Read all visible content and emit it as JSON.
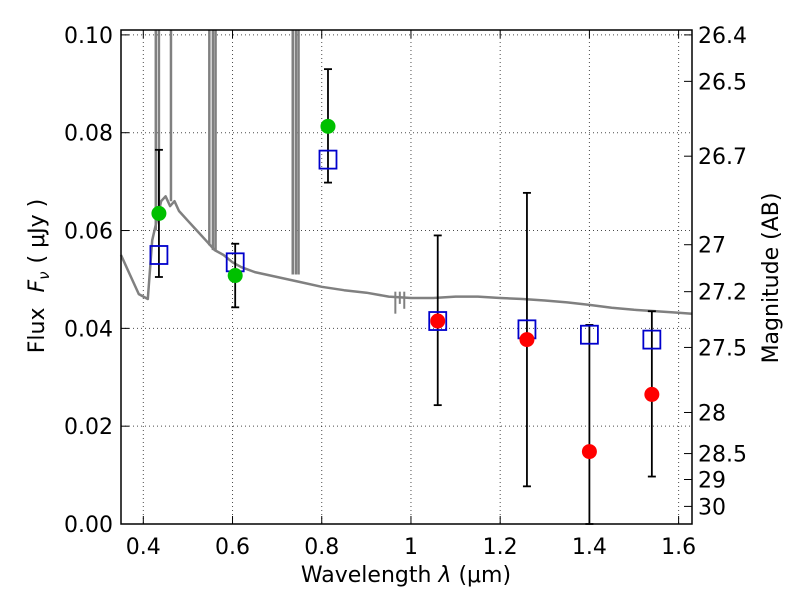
{
  "chart_data": {
    "type": "scatter",
    "title": "",
    "xlabel": "Wavelength",
    "xlabel_symbol": "λ",
    "xlabel_unit": "(μm)",
    "ylabel": "Flux",
    "ylabel_symbol": "F",
    "ylabel_subscript": "ν",
    "ylabel_unit": "( μJy )",
    "y2label": "Magnitude (AB)",
    "xlim": [
      0.35,
      1.63
    ],
    "ylim": [
      0.0,
      0.101
    ],
    "grid": true,
    "x_ticks": [
      0.4,
      0.6,
      0.8,
      1.0,
      1.2,
      1.4,
      1.6
    ],
    "x_tick_labels": [
      "0.4",
      "0.6",
      "0.8",
      "1",
      "1.2",
      "1.4",
      "1.6"
    ],
    "y_ticks": [
      0.0,
      0.02,
      0.04,
      0.06,
      0.08,
      0.1
    ],
    "y_tick_labels": [
      "0.00",
      "0.02",
      "0.04",
      "0.06",
      "0.08",
      "0.10"
    ],
    "y2_ticks": [
      {
        "label": "26.4",
        "flux": 0.1
      },
      {
        "label": "26.5",
        "flux": 0.0905
      },
      {
        "label": "26.7",
        "flux": 0.0752
      },
      {
        "label": "27",
        "flux": 0.0571
      },
      {
        "label": "27.2",
        "flux": 0.0475
      },
      {
        "label": "27.5",
        "flux": 0.0361
      },
      {
        "label": "28",
        "flux": 0.0228
      },
      {
        "label": "28.5",
        "flux": 0.0144
      },
      {
        "label": "29",
        "flux": 0.0091
      },
      {
        "label": "30",
        "flux": 0.0036
      }
    ],
    "colors": {
      "model": "#808080",
      "green": "#00c000",
      "red": "#ff0000",
      "box": "#0000cc",
      "errorbar": "#000000"
    },
    "model_spectrum": {
      "x": [
        0.35,
        0.37,
        0.39,
        0.41,
        0.42,
        0.43,
        0.44,
        0.45,
        0.46,
        0.47,
        0.48,
        0.5,
        0.52,
        0.54,
        0.56,
        0.58,
        0.6,
        0.62,
        0.65,
        0.7,
        0.75,
        0.8,
        0.85,
        0.9,
        0.95,
        1.0,
        1.05,
        1.1,
        1.15,
        1.2,
        1.25,
        1.3,
        1.35,
        1.4,
        1.45,
        1.5,
        1.55,
        1.6,
        1.63
      ],
      "y": [
        0.055,
        0.051,
        0.047,
        0.046,
        0.058,
        0.062,
        0.066,
        0.067,
        0.065,
        0.066,
        0.064,
        0.062,
        0.06,
        0.058,
        0.056,
        0.055,
        0.0535,
        0.0525,
        0.0515,
        0.0505,
        0.0495,
        0.0485,
        0.0478,
        0.0473,
        0.0465,
        0.0462,
        0.0462,
        0.0465,
        0.0465,
        0.0462,
        0.046,
        0.0457,
        0.0453,
        0.0448,
        0.0442,
        0.0438,
        0.0435,
        0.0432,
        0.043
      ],
      "spikes": [
        {
          "x": 0.428,
          "base": 0.06,
          "top": 0.101
        },
        {
          "x": 0.435,
          "base": 0.062,
          "top": 0.101
        },
        {
          "x": 0.462,
          "base": 0.066,
          "top": 0.101
        },
        {
          "x": 0.548,
          "base": 0.057,
          "top": 0.101
        },
        {
          "x": 0.556,
          "base": 0.056,
          "top": 0.101
        },
        {
          "x": 0.562,
          "base": 0.056,
          "top": 0.101
        },
        {
          "x": 0.735,
          "base": 0.051,
          "top": 0.101
        },
        {
          "x": 0.742,
          "base": 0.051,
          "top": 0.101
        },
        {
          "x": 0.748,
          "base": 0.051,
          "top": 0.101
        }
      ],
      "dips": [
        {
          "x": 0.965,
          "bottom": 0.043
        },
        {
          "x": 0.975,
          "bottom": 0.045
        },
        {
          "x": 0.985,
          "bottom": 0.044
        }
      ]
    },
    "model_bands": [
      {
        "x": 0.435,
        "y": 0.055
      },
      {
        "x": 0.606,
        "y": 0.0535
      },
      {
        "x": 0.814,
        "y": 0.0745
      },
      {
        "x": 1.06,
        "y": 0.0415
      },
      {
        "x": 1.26,
        "y": 0.0398
      },
      {
        "x": 1.4,
        "y": 0.0387
      },
      {
        "x": 1.54,
        "y": 0.0377
      }
    ],
    "observed": [
      {
        "x": 0.435,
        "y": 0.0635,
        "lo": 0.0505,
        "hi": 0.0765,
        "color": "green"
      },
      {
        "x": 0.606,
        "y": 0.0508,
        "lo": 0.0443,
        "hi": 0.0573,
        "color": "green"
      },
      {
        "x": 0.814,
        "y": 0.0813,
        "lo": 0.0698,
        "hi": 0.093,
        "color": "green"
      },
      {
        "x": 1.06,
        "y": 0.0415,
        "lo": 0.0243,
        "hi": 0.059,
        "color": "red"
      },
      {
        "x": 1.26,
        "y": 0.0377,
        "lo": 0.0077,
        "hi": 0.0677,
        "color": "red"
      },
      {
        "x": 1.4,
        "y": 0.0148,
        "lo": 0.0,
        "hi": 0.0407,
        "color": "red"
      },
      {
        "x": 1.54,
        "y": 0.0265,
        "lo": 0.0097,
        "hi": 0.0435,
        "color": "red"
      }
    ]
  }
}
